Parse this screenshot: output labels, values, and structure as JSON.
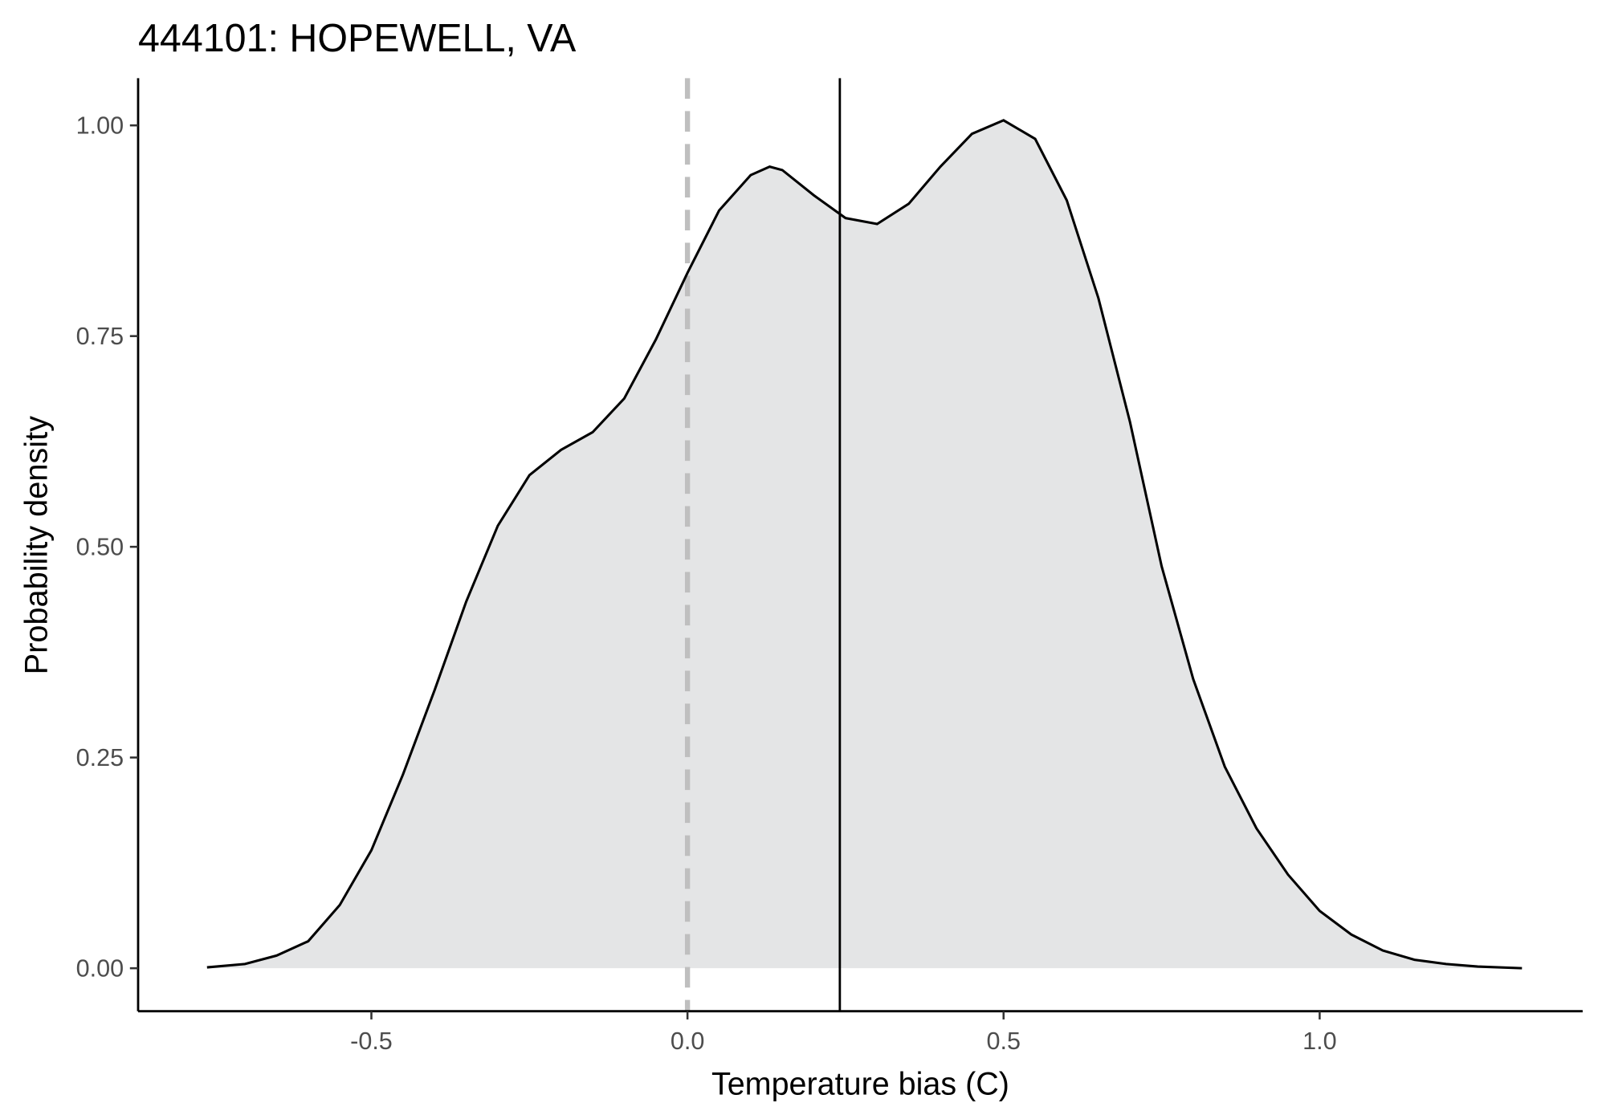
{
  "chart_data": {
    "type": "density",
    "title": "444101: HOPEWELL, VA",
    "x_label": "Temperature bias (C)",
    "y_label": "Probability density",
    "x": [
      -0.76,
      -0.7,
      -0.65,
      -0.6,
      -0.55,
      -0.5,
      -0.45,
      -0.4,
      -0.35,
      -0.3,
      -0.25,
      -0.2,
      -0.15,
      -0.1,
      -0.05,
      0.0,
      0.05,
      0.1,
      0.13,
      0.15,
      0.2,
      0.25,
      0.3,
      0.35,
      0.4,
      0.45,
      0.5,
      0.55,
      0.6,
      0.65,
      0.7,
      0.75,
      0.8,
      0.85,
      0.9,
      0.95,
      1.0,
      1.05,
      1.1,
      1.15,
      1.2,
      1.25,
      1.32
    ],
    "values": [
      0.001,
      0.005,
      0.015,
      0.032,
      0.075,
      0.14,
      0.23,
      0.33,
      0.435,
      0.525,
      0.585,
      0.615,
      0.636,
      0.676,
      0.746,
      0.825,
      0.899,
      0.941,
      0.951,
      0.947,
      0.917,
      0.89,
      0.883,
      0.907,
      0.951,
      0.99,
      1.006,
      0.984,
      0.911,
      0.795,
      0.648,
      0.477,
      0.343,
      0.239,
      0.166,
      0.111,
      0.068,
      0.04,
      0.021,
      0.01,
      0.005,
      0.002,
      0.0
    ],
    "color": "#000000",
    "fill_color": "#e4e5e6",
    "vlines": [
      {
        "x": 0.0,
        "style": "dashed",
        "color": "#bfbfbf"
      },
      {
        "x": 0.241,
        "style": "solid",
        "color": "#000000"
      }
    ],
    "xlim": [
      -0.869,
      1.416
    ],
    "ylim": [
      -0.051,
      1.056
    ],
    "xticks": [
      -0.5,
      {
        "value": 0,
        "label": "0.0"
      },
      0.5,
      {
        "value": 1,
        "label": "1.0"
      }
    ],
    "yticks": [
      {
        "value": 0,
        "label": "0.00"
      },
      {
        "value": 0.25,
        "label": "0.25"
      },
      {
        "value": 0.5,
        "label": "0.50"
      },
      {
        "value": 0.75,
        "label": "0.75"
      },
      {
        "value": 1,
        "label": "1.00"
      }
    ],
    "grid": false
  }
}
